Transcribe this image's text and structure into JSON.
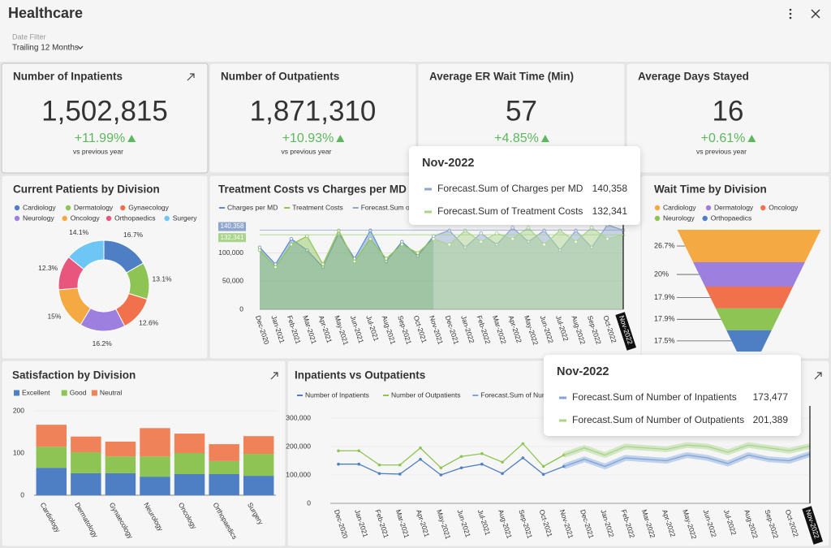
{
  "header": {
    "title": "Healthcare",
    "filter_label": "Date Filter",
    "filter_value": "Trailing 12 Months"
  },
  "kpis": [
    {
      "title": "Number of Inpatients",
      "value": "1,502,815",
      "change": "+11.99%",
      "note": "vs previous year"
    },
    {
      "title": "Number of Outpatients",
      "value": "1,871,310",
      "change": "+10.93%",
      "note": "vs previous year"
    },
    {
      "title": "Average ER Wait Time (Min)",
      "value": "57",
      "change": "+4.85%",
      "note": "vs previous year"
    },
    {
      "title": "Average Days Stayed",
      "value": "16",
      "change": "+0.61%",
      "note": "vs previous year"
    }
  ],
  "chart_data": [
    {
      "type": "pie",
      "title": "Current Patients by Division",
      "donut": true,
      "categories": [
        "Cardiology",
        "Dermatology",
        "Gynaecology",
        "Neurology",
        "Oncology",
        "Orthopaedics",
        "Surgery"
      ],
      "values": [
        16.7,
        13.1,
        12.6,
        16.2,
        15,
        12.3,
        14.1
      ],
      "value_labels": [
        "16.7%",
        "13.1%",
        "12.6%",
        "16.2%",
        "15%",
        "12.3%",
        "14.1%"
      ],
      "colors": [
        "#4e7fc4",
        "#8dc454",
        "#f0714c",
        "#9d7fe0",
        "#f5a942",
        "#e8557d",
        "#6ec6f5"
      ]
    },
    {
      "type": "area",
      "title": "Treatment Costs vs Charges per MD",
      "x": [
        "Dec-2020",
        "Jan-2021",
        "Feb-2021",
        "Mar-2021",
        "Apr-2021",
        "May-2021",
        "Jun-2021",
        "Jul-2021",
        "Aug-2021",
        "Sep-2021",
        "Oct-2021",
        "Nov-2021",
        "Dec-2021",
        "Jan-2022",
        "Feb-2022",
        "Mar-2022",
        "Apr-2022",
        "May-2022",
        "Jun-2022",
        "Jul-2022",
        "Aug-2022",
        "Sep-2022",
        "Oct-2022",
        "Nov-2022"
      ],
      "series": [
        {
          "name": "Charges per MD",
          "color": "#5b8bd0",
          "values": [
            110000,
            80000,
            125000,
            105000,
            75000,
            135000,
            90000,
            140000,
            85000,
            120000,
            95000,
            130000,
            null,
            null,
            null,
            null,
            null,
            null,
            null,
            null,
            null,
            null,
            null,
            null
          ]
        },
        {
          "name": "Treatment Costs",
          "color": "#8dc454",
          "values": [
            105000,
            75000,
            115000,
            130000,
            80000,
            140000,
            85000,
            125000,
            90000,
            115000,
            100000,
            125000,
            null,
            null,
            null,
            null,
            null,
            null,
            null,
            null,
            null,
            null,
            null,
            null
          ]
        },
        {
          "name": "Forecast.Sum of Charges per MD",
          "color": "#8ea6cf",
          "values": [
            null,
            null,
            null,
            null,
            null,
            null,
            null,
            null,
            null,
            null,
            null,
            130000,
            140000,
            110000,
            135000,
            115000,
            145000,
            120000,
            140000,
            105000,
            140000,
            110000,
            150000,
            140358
          ]
        },
        {
          "name": "Forecast.Sum of Treatment Costs",
          "color": "#a9d48a",
          "values": [
            null,
            null,
            null,
            null,
            null,
            null,
            null,
            null,
            null,
            null,
            null,
            125000,
            115000,
            140000,
            120000,
            135000,
            125000,
            145000,
            115000,
            140000,
            120000,
            145000,
            125000,
            132341
          ]
        }
      ],
      "tooltip_labels": [
        "140,358",
        "132,341"
      ],
      "ylim": [
        0,
        160000
      ],
      "yticks": [
        0,
        {
          "value": 50000,
          "label": "50,000"
        },
        {
          "value": 100000,
          "label": "100,000"
        }
      ]
    },
    {
      "type": "funnel",
      "title": "Wait Time by Division",
      "categories": [
        "Cardiology",
        "Dermatology",
        "Oncology",
        "Neurology",
        "Orthopaedics"
      ],
      "values": [
        26.7,
        20,
        17.9,
        17.9,
        17.5
      ],
      "value_labels": [
        "26.7%",
        "20%",
        "17.9%",
        "17.9%",
        "17.5%"
      ],
      "colors": [
        "#f5a942",
        "#9d7fe0",
        "#f0714c",
        "#8dc454",
        "#4e7fc4"
      ]
    },
    {
      "type": "stacked_bar",
      "title": "Satisfaction by Division",
      "categories": [
        "Cardiology",
        "Dermatology",
        "Gynaecology",
        "Neurology",
        "Oncology",
        "Orthopaedics",
        "Surgery"
      ],
      "series": [
        {
          "name": "Excellent",
          "color": "#4e7fc4",
          "values": [
            65,
            52,
            52,
            44,
            50,
            50,
            46
          ]
        },
        {
          "name": "Good",
          "color": "#8dc454",
          "values": [
            50,
            50,
            40,
            48,
            50,
            31,
            52
          ]
        },
        {
          "name": "Neutral",
          "color": "#f0825a",
          "values": [
            52,
            37,
            35,
            67,
            46,
            40,
            42
          ]
        }
      ],
      "ylim": [
        0,
        220
      ],
      "yticks": [
        0,
        100,
        200
      ]
    },
    {
      "type": "line",
      "title": "Inpatients vs Outpatients",
      "x": [
        "Dec-2020",
        "Jan-2021",
        "Feb-2021",
        "Mar-2021",
        "Apr-2021",
        "May-2021",
        "Jun-2021",
        "Jul-2021",
        "Aug-2021",
        "Sep-2021",
        "Oct-2021",
        "Nov-2021",
        "Dec-2021",
        "Jan-2022",
        "Feb-2022",
        "Mar-2022",
        "Apr-2022",
        "May-2022",
        "Jun-2022",
        "Jul-2022",
        "Aug-2022",
        "Sep-2022",
        "Oct-2022",
        "Nov-2022"
      ],
      "series": [
        {
          "name": "Number of Inpatients",
          "color": "#4e7fc4",
          "values": [
            138000,
            138000,
            105000,
            103000,
            155000,
            100000,
            125000,
            138000,
            105000,
            160000,
            102000,
            130000,
            null,
            null,
            null,
            null,
            null,
            null,
            null,
            null,
            null,
            null,
            null,
            null
          ]
        },
        {
          "name": "Number of Outpatients",
          "color": "#8dc454",
          "values": [
            185000,
            185000,
            135000,
            135000,
            195000,
            125000,
            165000,
            175000,
            145000,
            210000,
            130000,
            170000,
            null,
            null,
            null,
            null,
            null,
            null,
            null,
            null,
            null,
            null,
            null,
            null
          ]
        },
        {
          "name": "Forecast.Sum of Number of Inpatients",
          "color": "#7fa3db",
          "forecast": true,
          "values": [
            null,
            null,
            null,
            null,
            null,
            null,
            null,
            null,
            null,
            null,
            null,
            130000,
            155000,
            130000,
            160000,
            155000,
            150000,
            170000,
            160000,
            140000,
            170000,
            155000,
            150000,
            173477
          ]
        },
        {
          "name": "Forecast.Sum of Number of Outpatients",
          "color": "#a9d48a",
          "forecast": true,
          "values": [
            null,
            null,
            null,
            null,
            null,
            null,
            null,
            null,
            null,
            null,
            null,
            170000,
            195000,
            170000,
            200000,
            195000,
            190000,
            205000,
            200000,
            180000,
            205000,
            195000,
            185000,
            201389
          ]
        }
      ],
      "tooltip_labels": [
        "173,477",
        "201,389"
      ],
      "ylim": [
        0,
        330000
      ],
      "yticks": [
        0,
        {
          "value": 100000,
          "label": "100,000"
        },
        {
          "value": 200000,
          "label": "200,000"
        },
        {
          "value": 300000,
          "label": "300,000"
        }
      ]
    }
  ]
}
